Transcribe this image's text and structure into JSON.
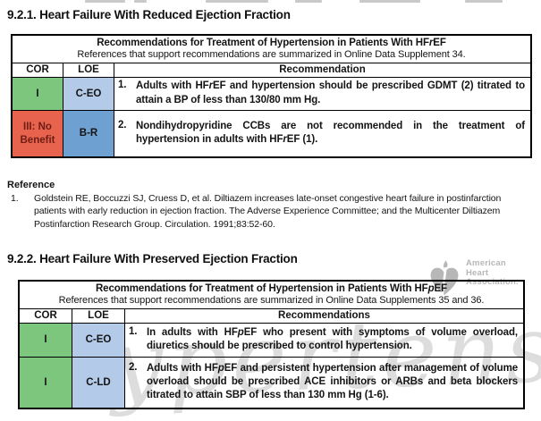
{
  "colors": {
    "cor_green": "#7CC67E",
    "loe_light_blue": "#B3CBE9",
    "loe_blue": "#6FA0D2",
    "cor_red": "#E8634E",
    "cor_red_text": "#6E1D14",
    "watermark_gray": "#9B9B9B",
    "logo_gray": "#B7B7B7"
  },
  "headings": {
    "section1": "9.2.1. Heart Failure With Reduced Ejection Fraction",
    "section2": "9.2.2. Heart Failure With Preserved Ejection Fraction"
  },
  "table1": {
    "title": "Recommendations for Treatment of Hypertension in Patients With HF*r*EF",
    "subtitle": "References that support recommendations are summarized in Online Data Supplement 34.",
    "headers": {
      "cor": "COR",
      "loe": "LOE",
      "rec": "Recommendation"
    },
    "rows": [
      {
        "cor": "I",
        "loe": "C-EO",
        "num": "1.",
        "text": "Adults with HF*r*EF and hypertension should be prescribed GDMT (2) titrated to attain a BP of less than 130/80 mm Hg."
      },
      {
        "cor": "III: No Benefit",
        "loe": "B-R",
        "num": "2.",
        "text": "Nondihydropyridine CCBs are not recommended in the treatment of hypertension in adults with HF*r*EF (1)."
      }
    ]
  },
  "reference": {
    "heading": "Reference",
    "items": [
      {
        "num": "1.",
        "text": "Goldstein RE, Boccuzzi SJ, Cruess D, et al. Diltiazem increases late-onset congestive heart failure in postinfarction patients with early reduction in ejection fraction. The Adverse Experience Committee; and the Multicenter Diltiazem Postinfarction Research Group. Circulation. 1991;83:52-60."
      }
    ]
  },
  "table2": {
    "title": "Recommendations for Treatment of Hypertension in Patients With HF*p*EF",
    "subtitle": "References that support recommendations are summarized in Online Data Supplements 35 and 36.",
    "headers": {
      "cor": "COR",
      "loe": "LOE",
      "rec": "Recommendations"
    },
    "rows": [
      {
        "cor": "I",
        "loe": "C-EO",
        "num": "1.",
        "text": "In adults with HF*p*EF who present with symptoms of volume overload, diuretics should be prescribed to control hypertension."
      },
      {
        "cor": "I",
        "loe": "C-LD",
        "num": "2.",
        "text": "Adults with HF*p*EF and persistent hypertension after management of volume overload should be prescribed ACE inhibitors or ARBs and beta blockers titrated to attain SBP of less than 130 mm Hg (1-6)."
      }
    ]
  },
  "watermarks": {
    "journal_text": "Hypertension",
    "aha": {
      "line1": "American",
      "line2": "Heart",
      "line3": "Association."
    }
  }
}
